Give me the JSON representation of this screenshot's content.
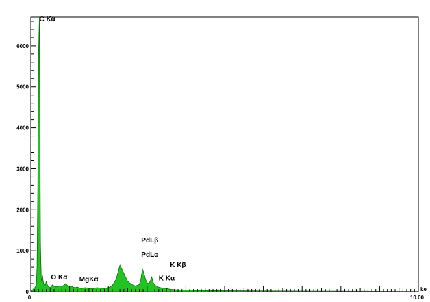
{
  "chart_data": {
    "type": "area",
    "title": "",
    "xlabel": "",
    "ylabel": "",
    "x_tick_labels": [
      "0",
      "10.00"
    ],
    "x_unit": "ke",
    "xlim": [
      0,
      10
    ],
    "ylim": [
      0,
      6700
    ],
    "y_ticks": [
      0,
      1000,
      2000,
      3000,
      4000,
      5000,
      6000
    ],
    "y_tick_labels": [
      "0",
      "1000",
      "2000",
      "3000",
      "4000",
      "5000",
      "6000"
    ],
    "grid": false,
    "fill_color": "#22c322",
    "line_color": "#0a6a0a",
    "series": [
      {
        "x": [
          0.0,
          0.06,
          0.1,
          0.14,
          0.16,
          0.18,
          0.2,
          0.22,
          0.24,
          0.25,
          0.26,
          0.27,
          0.28,
          0.3,
          0.32,
          0.34,
          0.36,
          0.38,
          0.4,
          0.43,
          0.46,
          0.5,
          0.53,
          0.56,
          0.6,
          0.65,
          0.7,
          0.75,
          0.8,
          0.85,
          0.9,
          0.95,
          1.0,
          1.05,
          1.1,
          1.15,
          1.2,
          1.25,
          1.3,
          1.4,
          1.5,
          1.6,
          1.7,
          1.8,
          1.9,
          2.0,
          2.1,
          2.2,
          2.3,
          2.4,
          2.5,
          2.6,
          2.7,
          2.8,
          2.84,
          2.88,
          2.92,
          2.96,
          3.0,
          3.04,
          3.08,
          3.12,
          3.16,
          3.2,
          3.25,
          3.3,
          3.35,
          3.4,
          3.45,
          3.5,
          3.6,
          3.7,
          3.8,
          3.9,
          4.0,
          4.2,
          4.4,
          4.6,
          4.8,
          5.0,
          5.5,
          6.0,
          6.5,
          7.0,
          7.5,
          8.0,
          8.5,
          9.0,
          9.5,
          10.0
        ],
        "y": [
          0,
          60,
          100,
          150,
          600,
          2500,
          5800,
          6700,
          3000,
          1200,
          700,
          350,
          250,
          400,
          250,
          180,
          150,
          180,
          260,
          160,
          120,
          100,
          140,
          170,
          140,
          120,
          130,
          150,
          130,
          160,
          200,
          150,
          130,
          140,
          110,
          100,
          120,
          90,
          80,
          100,
          90,
          80,
          100,
          90,
          80,
          100,
          150,
          300,
          650,
          450,
          250,
          180,
          140,
          180,
          300,
          550,
          450,
          300,
          220,
          200,
          250,
          360,
          220,
          160,
          140,
          110,
          100,
          90,
          85,
          80,
          60,
          50,
          45,
          40,
          40,
          35,
          30,
          28,
          26,
          25,
          22,
          20,
          18,
          16,
          15,
          14,
          12,
          10,
          8,
          5
        ]
      }
    ],
    "annotations": [
      {
        "text": "C Kα",
        "x": 0.22,
        "y": 6700
      },
      {
        "text": "O Kα",
        "x": 0.52,
        "y": 400
      },
      {
        "text": "MgKα",
        "x": 1.25,
        "y": 350
      },
      {
        "text": "PdLβ",
        "x": 2.85,
        "y": 1300
      },
      {
        "text": "PdLα",
        "x": 2.85,
        "y": 950
      },
      {
        "text": "K Kβ",
        "x": 3.59,
        "y": 700
      },
      {
        "text": "K Kα",
        "x": 3.3,
        "y": 380
      }
    ]
  }
}
